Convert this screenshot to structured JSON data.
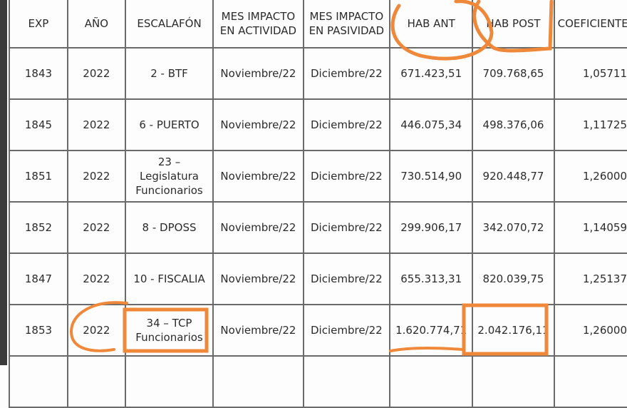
{
  "columns": [
    "EXP",
    "AÑO",
    "ESCALAFÓN",
    "MES IMPACTO EN ACTIVIDAD",
    "MES IMPACTO EN PASIVIDAD",
    "HAB ANT",
    "HAB POST",
    "COEFICIENTE"
  ],
  "rows": [
    {
      "exp": "1843",
      "anio": "2022",
      "escalafon": "2 - BTF",
      "act": "Noviembre/22",
      "pas": "Diciembre/22",
      "hab_ant": "671.423,51",
      "hab_post": "709.768,65",
      "coef": "1,05711"
    },
    {
      "exp": "1845",
      "anio": "2022",
      "escalafon": "6 - PUERTO",
      "act": "Noviembre/22",
      "pas": "Diciembre/22",
      "hab_ant": "446.075,34",
      "hab_post": "498.376,06",
      "coef": "1,11725"
    },
    {
      "exp": "1851",
      "anio": "2022",
      "escalafon": "23 – Legislatura Funcionarios",
      "act": "Noviembre/22",
      "pas": "Diciembre/22",
      "hab_ant": "730.514,90",
      "hab_post": "920.448,77",
      "coef": "1,26000"
    },
    {
      "exp": "1852",
      "anio": "2022",
      "escalafon": "8 - DPOSS",
      "act": "Noviembre/22",
      "pas": "Diciembre/22",
      "hab_ant": "299.906,17",
      "hab_post": "342.070,72",
      "coef": "1,14059"
    },
    {
      "exp": "1847",
      "anio": "2022",
      "escalafon": "10 - FISCALIA",
      "act": "Noviembre/22",
      "pas": "Diciembre/22",
      "hab_ant": "655.313,31",
      "hab_post": "820.039,75",
      "coef": "1,25137"
    },
    {
      "exp": "1853",
      "anio": "2022",
      "escalafon": "34 – TCP Funcionarios",
      "act": "Noviembre/22",
      "pas": "Diciembre/22",
      "hab_ant": "1.620.774,71",
      "hab_post": "2.042.176,11",
      "coef": "1,26000"
    }
  ],
  "annotation_color": "#f0883a"
}
